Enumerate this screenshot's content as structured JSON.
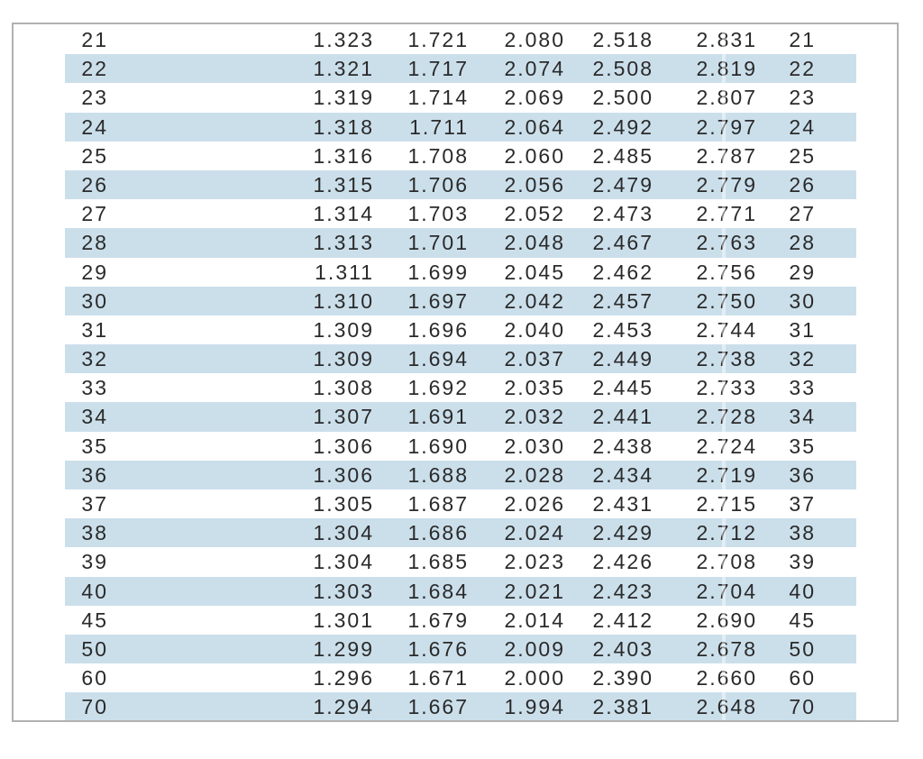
{
  "colors": {
    "stripe": "#cbdfeb",
    "box_border": "#b1b1b1",
    "text": "#2a2a2a"
  },
  "table": {
    "description": "t-distribution critical value table rows (df repeated in first and last column)",
    "rows": [
      {
        "df": "21",
        "values": [
          "1.323",
          "1.721",
          "2.080",
          "2.518",
          "2.831"
        ]
      },
      {
        "df": "22",
        "values": [
          "1.321",
          "1.717",
          "2.074",
          "2.508",
          "2.819"
        ]
      },
      {
        "df": "23",
        "values": [
          "1.319",
          "1.714",
          "2.069",
          "2.500",
          "2.807"
        ]
      },
      {
        "df": "24",
        "values": [
          "1.318",
          "1.711",
          "2.064",
          "2.492",
          "2.797"
        ]
      },
      {
        "df": "25",
        "values": [
          "1.316",
          "1.708",
          "2.060",
          "2.485",
          "2.787"
        ]
      },
      {
        "df": "26",
        "values": [
          "1.315",
          "1.706",
          "2.056",
          "2.479",
          "2.779"
        ]
      },
      {
        "df": "27",
        "values": [
          "1.314",
          "1.703",
          "2.052",
          "2.473",
          "2.771"
        ]
      },
      {
        "df": "28",
        "values": [
          "1.313",
          "1.701",
          "2.048",
          "2.467",
          "2.763"
        ]
      },
      {
        "df": "29",
        "values": [
          "1.311",
          "1.699",
          "2.045",
          "2.462",
          "2.756"
        ]
      },
      {
        "df": "30",
        "values": [
          "1.310",
          "1.697",
          "2.042",
          "2.457",
          "2.750"
        ]
      },
      {
        "df": "31",
        "values": [
          "1.309",
          "1.696",
          "2.040",
          "2.453",
          "2.744"
        ]
      },
      {
        "df": "32",
        "values": [
          "1.309",
          "1.694",
          "2.037",
          "2.449",
          "2.738"
        ]
      },
      {
        "df": "33",
        "values": [
          "1.308",
          "1.692",
          "2.035",
          "2.445",
          "2.733"
        ]
      },
      {
        "df": "34",
        "values": [
          "1.307",
          "1.691",
          "2.032",
          "2.441",
          "2.728"
        ]
      },
      {
        "df": "35",
        "values": [
          "1.306",
          "1.690",
          "2.030",
          "2.438",
          "2.724"
        ]
      },
      {
        "df": "36",
        "values": [
          "1.306",
          "1.688",
          "2.028",
          "2.434",
          "2.719"
        ]
      },
      {
        "df": "37",
        "values": [
          "1.305",
          "1.687",
          "2.026",
          "2.431",
          "2.715"
        ]
      },
      {
        "df": "38",
        "values": [
          "1.304",
          "1.686",
          "2.024",
          "2.429",
          "2.712"
        ]
      },
      {
        "df": "39",
        "values": [
          "1.304",
          "1.685",
          "2.023",
          "2.426",
          "2.708"
        ]
      },
      {
        "df": "40",
        "values": [
          "1.303",
          "1.684",
          "2.021",
          "2.423",
          "2.704"
        ]
      },
      {
        "df": "45",
        "values": [
          "1.301",
          "1.679",
          "2.014",
          "2.412",
          "2.690"
        ]
      },
      {
        "df": "50",
        "values": [
          "1.299",
          "1.676",
          "2.009",
          "2.403",
          "2.678"
        ]
      },
      {
        "df": "60",
        "values": [
          "1.296",
          "1.671",
          "2.000",
          "2.390",
          "2.660"
        ]
      },
      {
        "df": "70",
        "values": [
          "1.294",
          "1.667",
          "1.994",
          "2.381",
          "2.648"
        ]
      }
    ]
  }
}
